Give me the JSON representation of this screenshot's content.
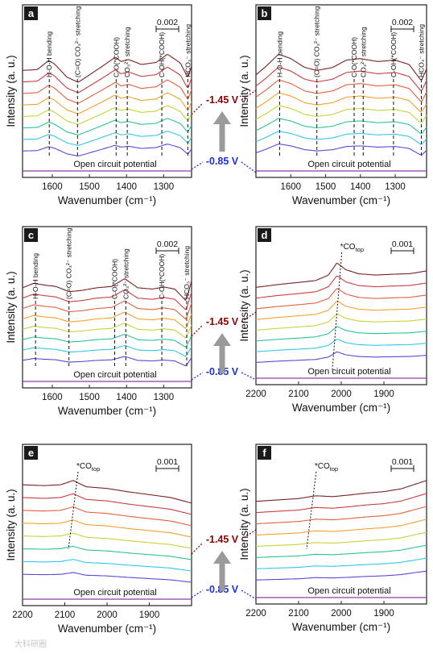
{
  "figure": {
    "voltage_high": "-1.45 V",
    "voltage_low": "-0.85 V",
    "voltage_high_color": "#8b0000",
    "voltage_low_color": "#1a2fe0",
    "arrow_color": "#9a9a9a",
    "watermark": "大科研圈"
  },
  "chart_data": [
    {
      "panel": "a",
      "type": "line",
      "xlabel": "Wavenumber (cm⁻¹)",
      "ylabel": "Intensity (a. u.)",
      "xlim": [
        1680,
        1225
      ],
      "xticks": [
        1600,
        1500,
        1400,
        1300
      ],
      "scale_bar": "0.002",
      "bottom_label": "Open circuit potential",
      "annotations": [
        {
          "text": "H-O-H bending",
          "x": 1608
        },
        {
          "text": "(C=O) CO₃²⁻ stretching",
          "x": 1532
        },
        {
          "text": "C-O(*COOH)",
          "x": 1428
        },
        {
          "text": "CO₃²⁻ stretching",
          "x": 1398
        },
        {
          "text": "C-OH(*COOH)",
          "x": 1305
        },
        {
          "text": "HCO₃⁻ stretching",
          "x": 1235
        }
      ],
      "profile": [
        [
          1680,
          0.45
        ],
        [
          1640,
          0.48
        ],
        [
          1610,
          0.78
        ],
        [
          1595,
          0.68
        ],
        [
          1560,
          0.22
        ],
        [
          1530,
          0.05
        ],
        [
          1500,
          0.3
        ],
        [
          1470,
          0.55
        ],
        [
          1430,
          0.9
        ],
        [
          1415,
          0.75
        ],
        [
          1395,
          0.82
        ],
        [
          1360,
          0.65
        ],
        [
          1320,
          0.72
        ],
        [
          1290,
          1.0
        ],
        [
          1255,
          0.7
        ],
        [
          1235,
          0.2
        ],
        [
          1225,
          0.6
        ]
      ]
    },
    {
      "panel": "b",
      "type": "line",
      "xlabel": "Wavenumber (cm⁻¹)",
      "ylabel": "Intensity (a. u.)",
      "xlim": [
        1700,
        1210
      ],
      "xticks": [
        1600,
        1500,
        1400,
        1300
      ],
      "scale_bar": "0.002",
      "bottom_label": "Open circuit potential",
      "annotations": [
        {
          "text": "H-O-H bending",
          "x": 1632
        },
        {
          "text": "(C=O) CO₃²⁻ stretching",
          "x": 1525
        },
        {
          "text": "C-O(*COOH)",
          "x": 1418
        },
        {
          "text": "CO₃²⁻ stretching",
          "x": 1392
        },
        {
          "text": "C-OH(*COOH)",
          "x": 1305
        },
        {
          "text": "HCO₃⁻ stretching",
          "x": 1225
        }
      ],
      "profile": [
        [
          1700,
          0.3
        ],
        [
          1670,
          0.6
        ],
        [
          1635,
          1.0
        ],
        [
          1600,
          0.85
        ],
        [
          1560,
          0.55
        ],
        [
          1525,
          0.45
        ],
        [
          1480,
          0.55
        ],
        [
          1440,
          0.8
        ],
        [
          1400,
          0.85
        ],
        [
          1350,
          0.75
        ],
        [
          1300,
          0.8
        ],
        [
          1260,
          0.65
        ],
        [
          1225,
          0.1
        ],
        [
          1210,
          0.5
        ]
      ]
    },
    {
      "panel": "c",
      "type": "line",
      "xlabel": "Wavenumber (cm⁻¹)",
      "ylabel": "Intensity (a. u.)",
      "xlim": [
        1680,
        1225
      ],
      "xticks": [
        1600,
        1500,
        1400,
        1300
      ],
      "scale_bar": "0.002",
      "bottom_label": "Open circuit potential",
      "annotations": [
        {
          "text": "H-O-H bending",
          "x": 1645
        },
        {
          "text": "(C=O) CO₃²⁻ stretching",
          "x": 1555
        },
        {
          "text": "C-O(*COOH)",
          "x": 1432
        },
        {
          "text": "CO₃²⁻ stretching",
          "x": 1402
        },
        {
          "text": "C-OH(*COOH)",
          "x": 1305
        },
        {
          "text": "HCO₃⁻ stretching",
          "x": 1238
        }
      ],
      "profile": [
        [
          1680,
          0.55
        ],
        [
          1650,
          0.72
        ],
        [
          1620,
          0.65
        ],
        [
          1590,
          0.6
        ],
        [
          1555,
          0.4
        ],
        [
          1520,
          0.45
        ],
        [
          1480,
          0.55
        ],
        [
          1440,
          0.6
        ],
        [
          1405,
          0.9
        ],
        [
          1370,
          0.55
        ],
        [
          1330,
          0.5
        ],
        [
          1300,
          0.58
        ],
        [
          1270,
          0.5
        ],
        [
          1240,
          0.05
        ],
        [
          1225,
          0.8
        ]
      ]
    },
    {
      "panel": "d",
      "type": "line",
      "xlabel": "Wavenumber (cm⁻¹)",
      "ylabel": "Intensity (a. u.)",
      "xlim": [
        2200,
        1800
      ],
      "xticks": [
        2200,
        2100,
        2000,
        1900
      ],
      "scale_bar": "0.001",
      "bottom_label": "Open circuit potential",
      "annotations": [
        {
          "text": "*CO",
          "sub": "top",
          "x": 2010
        }
      ],
      "profile": [
        [
          2200,
          0.1
        ],
        [
          2150,
          0.2
        ],
        [
          2100,
          0.28
        ],
        [
          2060,
          0.35
        ],
        [
          2030,
          0.55
        ],
        [
          2010,
          1.0
        ],
        [
          1990,
          0.75
        ],
        [
          1960,
          0.6
        ],
        [
          1920,
          0.55
        ],
        [
          1880,
          0.58
        ],
        [
          1840,
          0.6
        ],
        [
          1800,
          0.7
        ]
      ]
    },
    {
      "panel": "e",
      "type": "line",
      "xlabel": "Wavenumber (cm⁻¹)",
      "ylabel": "Intensity (a. u.)",
      "xlim": [
        2200,
        1800
      ],
      "xticks": [
        2200,
        2100,
        2000,
        1900
      ],
      "scale_bar": "0.001",
      "bottom_label": "Open circuit potential",
      "annotations": [
        {
          "text": "*CO",
          "sub": "top",
          "x": 2080
        }
      ],
      "profile": [
        [
          2200,
          0.85
        ],
        [
          2150,
          0.82
        ],
        [
          2110,
          0.85
        ],
        [
          2080,
          1.0
        ],
        [
          2050,
          0.78
        ],
        [
          2000,
          0.72
        ],
        [
          1950,
          0.6
        ],
        [
          1900,
          0.5
        ],
        [
          1850,
          0.4
        ],
        [
          1800,
          0.2
        ]
      ]
    },
    {
      "panel": "f",
      "type": "line",
      "xlabel": "Wavenumber (cm⁻¹)",
      "ylabel": "Intensity (a. u.)",
      "xlim": [
        2200,
        1800
      ],
      "xticks": [
        2200,
        2100,
        2000,
        1900
      ],
      "scale_bar": "0.001",
      "bottom_label": "Open circuit potential",
      "annotations": [
        {
          "text": "*CO",
          "sub": "top",
          "x": 2070
        }
      ],
      "profile": [
        [
          2200,
          0.25
        ],
        [
          2150,
          0.3
        ],
        [
          2100,
          0.35
        ],
        [
          2060,
          0.45
        ],
        [
          2020,
          0.42
        ],
        [
          1980,
          0.48
        ],
        [
          1940,
          0.55
        ],
        [
          1900,
          0.6
        ],
        [
          1860,
          0.7
        ],
        [
          1830,
          0.85
        ],
        [
          1800,
          1.0
        ]
      ]
    }
  ]
}
